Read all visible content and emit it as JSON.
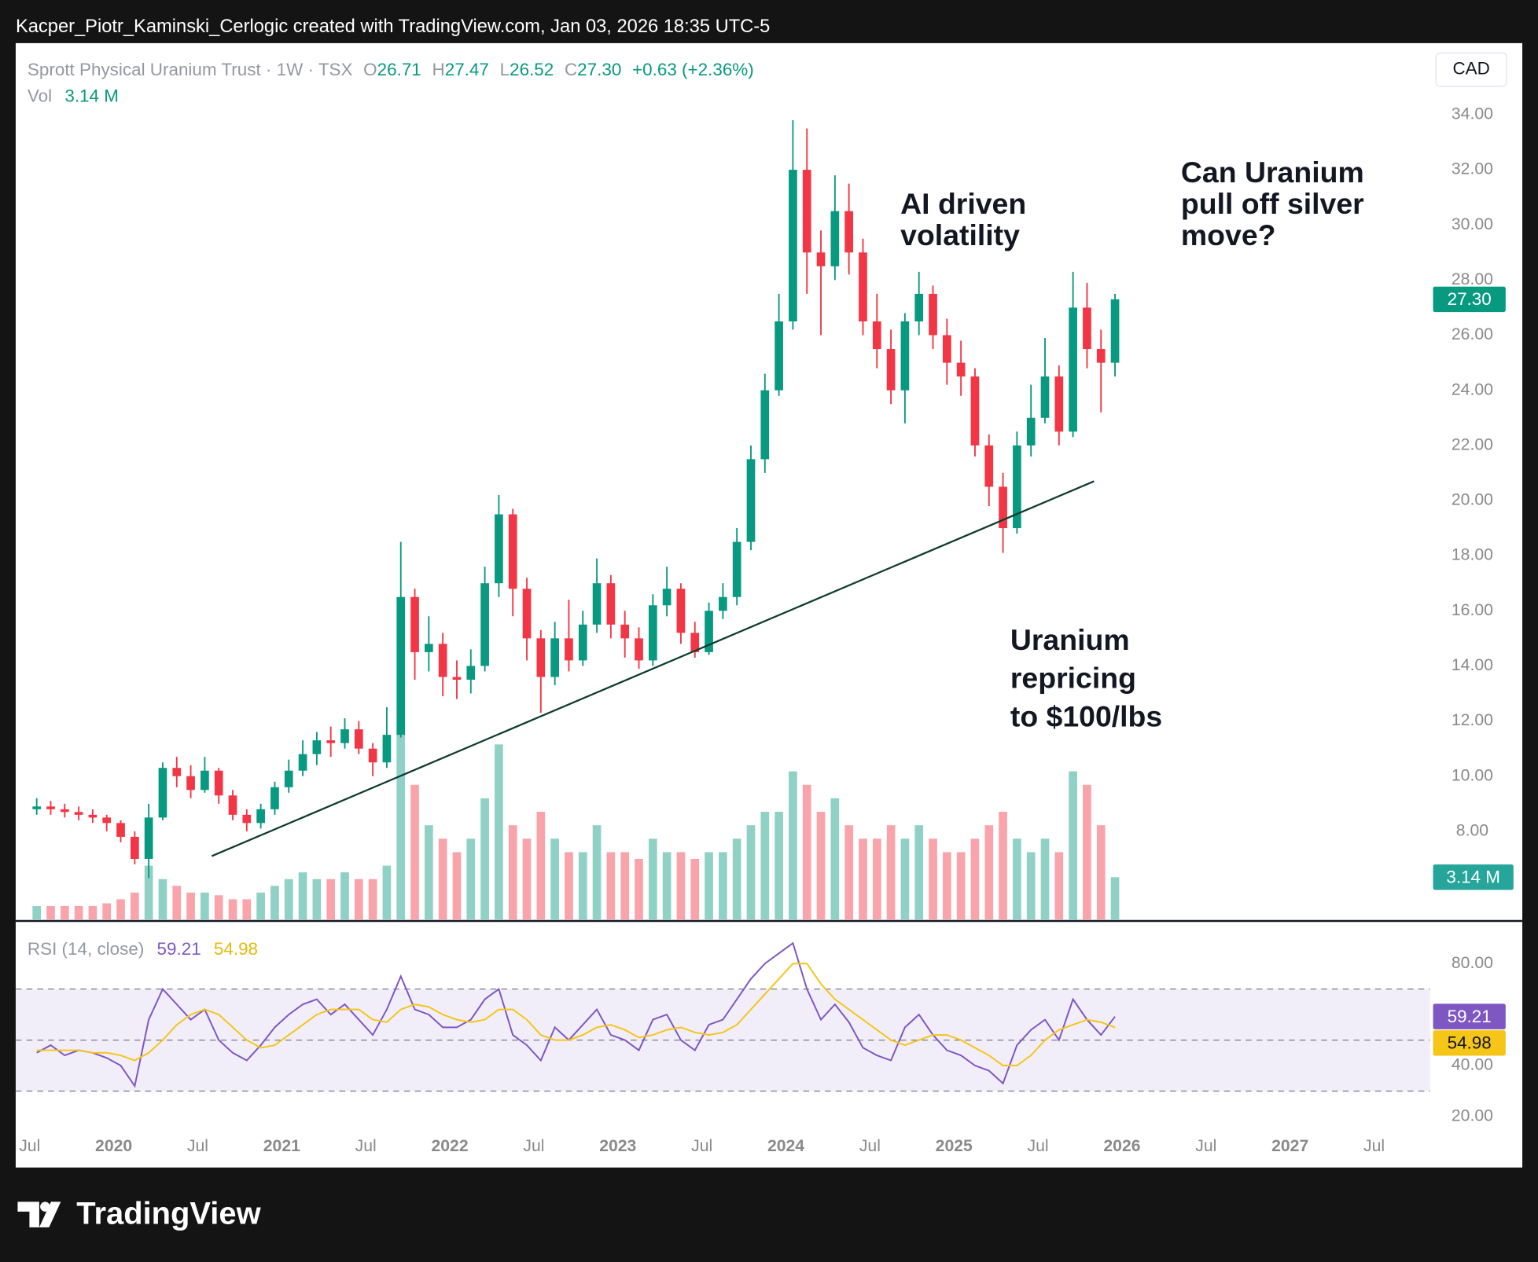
{
  "header": {
    "attribution": "Kacper_Piotr_Kaminski_Cerlogic created with TradingView.com, Jan 03, 2026 18:35 UTC-5"
  },
  "chart_data": {
    "type": "candlestick",
    "title": "Sprott Physical Uranium Trust · 1W · TSX",
    "currency": "CAD",
    "legend": {
      "o_label": "O",
      "o": "26.71",
      "h_label": "H",
      "h": "27.47",
      "l_label": "L",
      "l": "26.52",
      "c_label": "C",
      "c": "27.30",
      "change": "+0.63 (+2.36%)",
      "vol_label": "Vol",
      "vol": "3.14 M"
    },
    "x": [
      "2019-07",
      "2019-08",
      "2019-09",
      "2019-10",
      "2019-11",
      "2019-12",
      "2020-01",
      "2020-02",
      "2020-03",
      "2020-04",
      "2020-05",
      "2020-06",
      "2020-07",
      "2020-08",
      "2020-09",
      "2020-10",
      "2020-11",
      "2020-12",
      "2021-01",
      "2021-02",
      "2021-03",
      "2021-04",
      "2021-05",
      "2021-06",
      "2021-07",
      "2021-08",
      "2021-09",
      "2021-10",
      "2021-11",
      "2021-12",
      "2022-01",
      "2022-02",
      "2022-03",
      "2022-04",
      "2022-05",
      "2022-06",
      "2022-07",
      "2022-08",
      "2022-09",
      "2022-10",
      "2022-11",
      "2022-12",
      "2023-01",
      "2023-02",
      "2023-03",
      "2023-04",
      "2023-05",
      "2023-06",
      "2023-07",
      "2023-08",
      "2023-09",
      "2023-10",
      "2023-11",
      "2023-12",
      "2024-01",
      "2024-02",
      "2024-03",
      "2024-04",
      "2024-05",
      "2024-06",
      "2024-07",
      "2024-08",
      "2024-09",
      "2024-10",
      "2024-11",
      "2024-12",
      "2025-01",
      "2025-02",
      "2025-03",
      "2025-04",
      "2025-05",
      "2025-06",
      "2025-07",
      "2025-08",
      "2025-09",
      "2025-10",
      "2025-11",
      "2025-12"
    ],
    "open": [
      8.8,
      8.9,
      8.8,
      8.7,
      8.6,
      8.5,
      8.3,
      7.8,
      7.0,
      8.5,
      10.3,
      10.0,
      9.5,
      10.2,
      9.3,
      8.6,
      8.3,
      8.8,
      9.6,
      10.2,
      10.8,
      11.3,
      11.2,
      11.7,
      11.0,
      10.5,
      11.5,
      16.5,
      14.5,
      14.8,
      13.6,
      13.5,
      14.0,
      17.0,
      19.5,
      16.8,
      15.0,
      13.6,
      15.0,
      14.2,
      15.5,
      17.0,
      15.5,
      15.0,
      14.2,
      16.2,
      16.8,
      15.2,
      14.5,
      16.0,
      16.5,
      18.5,
      21.5,
      24.0,
      26.5,
      32.0,
      29.0,
      28.5,
      30.5,
      29.0,
      26.5,
      25.5,
      24.0,
      26.5,
      27.5,
      26.0,
      25.0,
      24.5,
      22.0,
      20.5,
      19.0,
      22.0,
      23.0,
      24.5,
      22.5,
      27.0,
      25.5,
      25.0
    ],
    "high": [
      9.2,
      9.1,
      9.0,
      8.9,
      8.8,
      8.6,
      8.4,
      8.0,
      9.0,
      10.5,
      10.7,
      10.4,
      10.7,
      10.3,
      9.5,
      8.8,
      9.0,
      9.8,
      10.6,
      11.3,
      11.6,
      11.8,
      12.1,
      12.0,
      11.2,
      12.5,
      18.5,
      16.8,
      15.8,
      15.2,
      14.2,
      14.6,
      17.6,
      20.2,
      19.7,
      17.2,
      15.3,
      15.6,
      16.4,
      16.0,
      17.9,
      17.3,
      16.0,
      15.4,
      16.6,
      17.6,
      17.0,
      15.6,
      16.3,
      17.0,
      19.0,
      22.0,
      24.6,
      27.5,
      33.8,
      33.5,
      29.8,
      31.8,
      31.5,
      29.5,
      27.5,
      26.2,
      26.8,
      28.3,
      27.8,
      26.6,
      25.8,
      24.8,
      22.4,
      21.0,
      22.5,
      24.2,
      25.9,
      24.9,
      28.3,
      27.9,
      26.2,
      27.5
    ],
    "low": [
      8.6,
      8.6,
      8.5,
      8.4,
      8.3,
      8.0,
      7.6,
      6.8,
      6.3,
      8.4,
      9.6,
      9.2,
      9.4,
      9.0,
      8.4,
      8.0,
      8.1,
      8.6,
      9.4,
      10.0,
      10.4,
      10.7,
      11.0,
      10.8,
      10.0,
      10.3,
      11.4,
      13.5,
      13.8,
      12.9,
      12.8,
      13.0,
      13.8,
      16.5,
      15.8,
      14.2,
      12.3,
      13.3,
      13.8,
      14.0,
      15.2,
      15.0,
      14.3,
      13.9,
      14.0,
      15.8,
      14.8,
      14.3,
      14.4,
      15.7,
      16.2,
      18.2,
      21.0,
      23.8,
      26.2,
      27.5,
      26.0,
      28.0,
      28.2,
      26.0,
      24.8,
      23.5,
      22.8,
      26.0,
      25.5,
      24.2,
      23.8,
      21.6,
      19.8,
      18.1,
      18.8,
      21.6,
      22.8,
      22.0,
      22.3,
      24.8,
      23.2,
      24.5
    ],
    "close": [
      8.9,
      8.8,
      8.7,
      8.6,
      8.5,
      8.3,
      7.8,
      7.0,
      8.5,
      10.3,
      10.0,
      9.5,
      10.2,
      9.3,
      8.6,
      8.3,
      8.8,
      9.6,
      10.2,
      10.8,
      11.3,
      11.2,
      11.7,
      11.0,
      10.5,
      11.5,
      16.5,
      14.5,
      14.8,
      13.6,
      13.5,
      14.0,
      17.0,
      19.5,
      16.8,
      15.0,
      13.6,
      15.0,
      14.2,
      15.5,
      17.0,
      15.5,
      15.0,
      14.2,
      16.2,
      16.8,
      15.2,
      14.5,
      16.0,
      16.5,
      18.5,
      21.5,
      24.0,
      26.5,
      32.0,
      29.0,
      28.5,
      30.5,
      29.0,
      26.5,
      25.5,
      24.0,
      26.5,
      27.5,
      26.0,
      25.0,
      24.5,
      22.0,
      20.5,
      19.0,
      22.0,
      23.0,
      24.5,
      22.5,
      27.0,
      25.5,
      25.0,
      27.3
    ],
    "up_color": "#089981",
    "down_color": "#f23645",
    "volume": {
      "values": [
        1,
        1,
        1,
        1,
        1,
        1.2,
        1.5,
        2,
        4,
        3,
        2.5,
        2,
        2,
        1.8,
        1.5,
        1.5,
        2,
        2.5,
        3,
        3.5,
        3,
        3,
        3.5,
        3,
        3,
        4,
        14,
        10,
        7,
        6,
        5,
        6,
        9,
        13,
        7,
        6,
        8,
        6,
        5,
        5,
        7,
        5,
        5,
        4.5,
        6,
        5,
        5,
        4.5,
        5,
        5,
        6,
        7,
        8,
        8,
        11,
        10,
        8,
        9,
        7,
        6,
        6,
        7,
        6,
        7,
        6,
        5,
        5,
        6,
        7,
        8,
        6,
        5,
        6,
        5,
        11,
        10,
        7,
        3.14
      ],
      "ylim": [
        0,
        65
      ]
    },
    "xlim": [
      "2019-06",
      "2027-11"
    ],
    "xticks": [
      {
        "value": "2019-07",
        "label": "Jul"
      },
      {
        "value": "2020-01",
        "label": "2020"
      },
      {
        "value": "2020-07",
        "label": "Jul"
      },
      {
        "value": "2021-01",
        "label": "2021"
      },
      {
        "value": "2021-07",
        "label": "Jul"
      },
      {
        "value": "2022-01",
        "label": "2022"
      },
      {
        "value": "2022-07",
        "label": "Jul"
      },
      {
        "value": "2023-01",
        "label": "2023"
      },
      {
        "value": "2023-07",
        "label": "Jul"
      },
      {
        "value": "2024-01",
        "label": "2024"
      },
      {
        "value": "2024-07",
        "label": "Jul"
      },
      {
        "value": "2025-01",
        "label": "2025"
      },
      {
        "value": "2025-07",
        "label": "Jul"
      },
      {
        "value": "2026-01",
        "label": "2026"
      },
      {
        "value": "2026-07",
        "label": "Jul"
      },
      {
        "value": "2027-01",
        "label": "2027"
      },
      {
        "value": "2027-07",
        "label": "Jul"
      }
    ],
    "ylim": [
      4.8,
      36.56
    ],
    "yticks": [
      {
        "value": 8,
        "label": "8.00"
      },
      {
        "value": 10,
        "label": "10.00"
      },
      {
        "value": 12,
        "label": "12.00"
      },
      {
        "value": 14,
        "label": "14.00"
      },
      {
        "value": 16,
        "label": "16.00"
      },
      {
        "value": 18,
        "label": "18.00"
      },
      {
        "value": 20,
        "label": "20.00"
      },
      {
        "value": 22,
        "label": "22.00"
      },
      {
        "value": 24,
        "label": "24.00"
      },
      {
        "value": 26,
        "label": "26.00"
      },
      {
        "value": 28,
        "label": "28.00"
      },
      {
        "value": 30,
        "label": "30.00"
      },
      {
        "value": 32,
        "label": "32.00"
      },
      {
        "value": 34,
        "label": "34.00"
      }
    ],
    "trendline": {
      "x": [
        "2020-08",
        "2025-11"
      ],
      "y": [
        7.1,
        20.7
      ],
      "color": "#0d3b2e"
    },
    "annotations": [
      {
        "lines": [
          "AI driven",
          "volatility"
        ]
      },
      {
        "lines": [
          "Can Uranium",
          "pull off silver",
          "move?"
        ]
      },
      {
        "lines": [
          "Uranium",
          "repricing",
          "to $100/lbs"
        ]
      }
    ],
    "rsi": {
      "title": "RSI (14, close)",
      "series": [
        {
          "color": "#7e57c2",
          "values": [
            45,
            48,
            44,
            46,
            45,
            43,
            40,
            32,
            58,
            70,
            64,
            58,
            62,
            50,
            45,
            42,
            48,
            55,
            60,
            64,
            66,
            60,
            64,
            58,
            52,
            62,
            75,
            62,
            60,
            55,
            55,
            58,
            66,
            70,
            52,
            48,
            42,
            55,
            50,
            56,
            62,
            52,
            50,
            46,
            58,
            60,
            50,
            46,
            56,
            58,
            66,
            74,
            80,
            84,
            88,
            70,
            58,
            64,
            57,
            47,
            44,
            42,
            55,
            60,
            52,
            46,
            44,
            40,
            38,
            33,
            48,
            54,
            58,
            50,
            66,
            58,
            52,
            59.21
          ]
        },
        {
          "color": "#f5c518",
          "values": [
            46,
            46,
            46,
            46,
            45,
            45,
            44,
            42,
            45,
            50,
            56,
            60,
            62,
            60,
            55,
            50,
            47,
            48,
            52,
            56,
            60,
            62,
            62,
            62,
            58,
            57,
            62,
            64,
            63,
            60,
            58,
            57,
            58,
            62,
            62,
            58,
            52,
            50,
            50,
            52,
            55,
            56,
            54,
            51,
            52,
            54,
            55,
            53,
            52,
            53,
            56,
            62,
            68,
            74,
            80,
            80,
            72,
            66,
            62,
            58,
            54,
            50,
            48,
            50,
            52,
            52,
            50,
            47,
            44,
            40,
            40,
            44,
            50,
            54,
            56,
            58,
            57,
            54.98
          ]
        }
      ],
      "ylim": [
        15.8,
        96.5
      ],
      "yticks": [
        {
          "value": 20,
          "label": "20.00"
        },
        {
          "value": 40,
          "label": "40.00"
        },
        {
          "value": 80,
          "label": "80.00"
        }
      ],
      "levels": [
        30,
        50,
        70
      ]
    }
  },
  "footer": {
    "brand": "TradingView"
  }
}
